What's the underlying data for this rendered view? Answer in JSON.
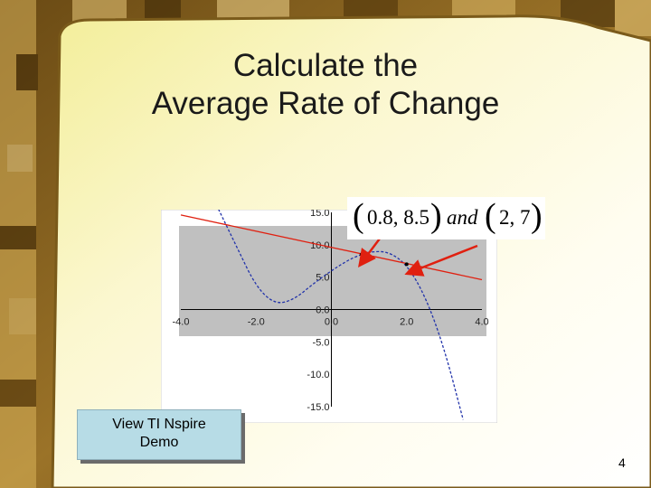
{
  "slide": {
    "title_line1": "Calculate the",
    "title_line2": "Average Rate of Change",
    "points": {
      "open1": "(",
      "point1": "0.8, 8.5",
      "close1": ")",
      "and": "and",
      "open2": "(",
      "point2": "2, 7",
      "close2": ")"
    },
    "demo_button": {
      "line1": "View TI Nspire",
      "line2": "Demo"
    },
    "page_number": "4"
  },
  "chart_data": {
    "type": "line",
    "title": "",
    "xlabel": "",
    "ylabel": "",
    "xlim": [
      -4.0,
      4.0
    ],
    "ylim": [
      -15.0,
      15.0
    ],
    "x_ticks": [
      "-4.0",
      "-2.0",
      "0.0",
      "2.0",
      "4.0"
    ],
    "y_ticks": [
      "15.0",
      "10.0",
      "5.0",
      "0.0",
      "-5.0",
      "-10.0",
      "-15.0"
    ],
    "grid": false,
    "plot_area_color": "#c0c0c0",
    "series": [
      {
        "color": "#2233aa",
        "style": "dashed",
        "x": [
          -3.0,
          -2.5,
          -2.0,
          -1.5,
          -1.0,
          -0.5,
          0.0,
          0.5,
          0.8,
          1.0,
          1.5,
          2.0,
          2.5,
          3.0,
          3.5
        ],
        "y": [
          15.5,
          9.5,
          3.5,
          0.8,
          1.5,
          3.9,
          6.0,
          7.8,
          8.5,
          8.9,
          9.0,
          7.0,
          2.0,
          -6.0,
          -17.0
        ]
      },
      {
        "color": "#e02010",
        "style": "solid",
        "x": [
          -4.0,
          4.0
        ],
        "y": [
          14.6,
          4.6
        ]
      }
    ],
    "points": [
      {
        "x": 0.8,
        "y": 8.5
      },
      {
        "x": 2.0,
        "y": 7.0
      }
    ]
  }
}
